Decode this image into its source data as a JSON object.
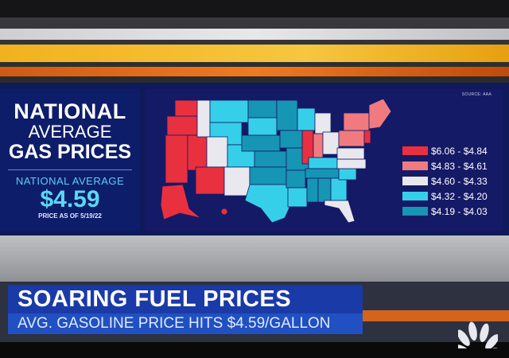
{
  "panel": {
    "line1": "NATIONAL",
    "line2": "AVERAGE",
    "line3": "GAS PRICES",
    "label": "NATIONAL AVERAGE",
    "price": "$4.59",
    "as_of": "PRICE AS OF 5/19/22"
  },
  "map": {
    "source": "SOURCE: AAA",
    "legend": [
      {
        "label": "$6.06 - $4.84",
        "color": "#e8303e"
      },
      {
        "label": "$4.83 - $4.61",
        "color": "#f07a80"
      },
      {
        "label": "$4.60 - $4.33",
        "color": "#e8e8ee"
      },
      {
        "label": "$4.32 - $4.20",
        "color": "#36cfea"
      },
      {
        "label": "$4.19 - $4.03",
        "color": "#1795b5"
      }
    ]
  },
  "lower_third": {
    "headline": "SOARING FUEL PRICES",
    "subhead": "AVG. GASOLINE PRICE HITS $4.59/GALLON"
  },
  "logo": "NBC peacock"
}
